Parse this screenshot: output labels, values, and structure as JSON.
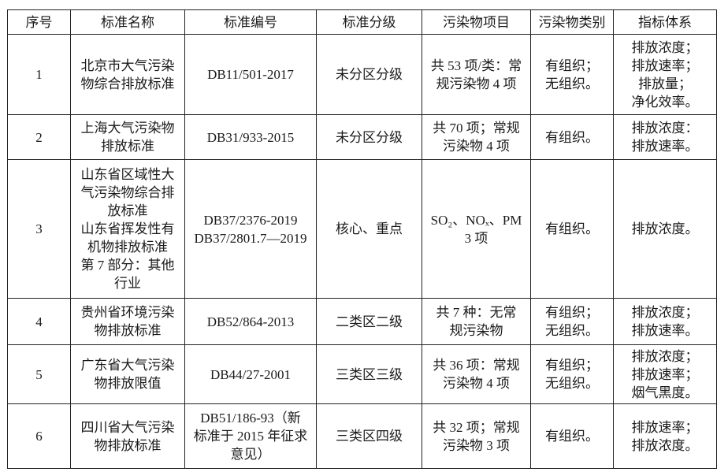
{
  "headers": [
    "序号",
    "标准名称",
    "标准编号",
    "标准分级",
    "污染物项目",
    "污染物类别",
    "指标体系"
  ],
  "rows": [
    {
      "cells": [
        [
          "1"
        ],
        [
          "北京市大气污染",
          "物综合排放标准"
        ],
        [
          "DB11/501-2017"
        ],
        [
          "未分区分级"
        ],
        [
          "共 53 项/类：常",
          "规污染物 4 项"
        ],
        [
          "有组织；",
          "无组织。"
        ],
        [
          "排放浓度；",
          "排放速率；",
          "排放量；",
          "净化效率。"
        ]
      ]
    },
    {
      "cells": [
        [
          "2"
        ],
        [
          "上海大气污染物",
          "排放标准"
        ],
        [
          "DB31/933-2015"
        ],
        [
          "未分区分级"
        ],
        [
          "共 70 项；常规",
          "污染物 4 项"
        ],
        [
          "有组织。"
        ],
        [
          "排放浓度：",
          "排放速率。"
        ]
      ]
    },
    {
      "cells": [
        [
          "3"
        ],
        [
          "山东省区域性大",
          "气污染物综合排",
          "放标准",
          "山东省挥发性有",
          "机物排放标准",
          "第 7 部分：其他",
          "行业"
        ],
        [
          "DB37/2376-2019",
          "DB37/2801.7—2019"
        ],
        [
          "核心、重点"
        ],
        [
          "SO₂、NOₓ、PM",
          "3 项"
        ],
        [
          "有组织。"
        ],
        [
          "排放浓度。"
        ]
      ]
    },
    {
      "cells": [
        [
          "4"
        ],
        [
          "贵州省环境污染",
          "物排放标准"
        ],
        [
          "DB52/864-2013"
        ],
        [
          "二类区二级"
        ],
        [
          "共 7 种：无常",
          "规污染物"
        ],
        [
          "有组织；",
          "无组织。"
        ],
        [
          "排放浓度；",
          "排放速率。"
        ]
      ]
    },
    {
      "cells": [
        [
          "5"
        ],
        [
          "广东省大气污染",
          "物排放限值"
        ],
        [
          "DB44/27-2001"
        ],
        [
          "三类区三级"
        ],
        [
          "共 36 项：常规",
          "污染物 4 项"
        ],
        [
          "有组织；",
          "无组织。"
        ],
        [
          "排放浓度；",
          "排放速率；",
          "烟气黑度。"
        ]
      ]
    },
    {
      "cells": [
        [
          "6"
        ],
        [
          "四川省大气污染",
          "物排放标准"
        ],
        [
          "DB51/186-93（新",
          "标准于 2015 年征求",
          "意见）"
        ],
        [
          "三类区四级"
        ],
        [
          "共 32 项；常规",
          "污染物 3 项"
        ],
        [
          "有组织。"
        ],
        [
          "排放速率；",
          "排放浓度。"
        ]
      ]
    }
  ]
}
